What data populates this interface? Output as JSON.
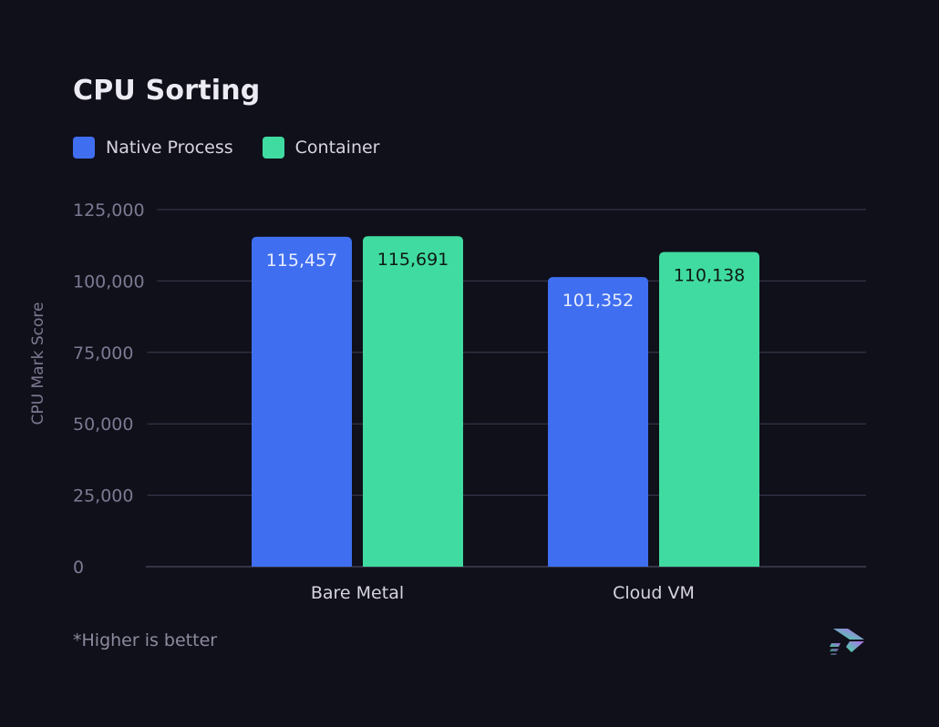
{
  "title": "CPU Sorting",
  "footnote": "*Higher is better",
  "colors": {
    "background": "#10101a",
    "native": "#3f6ff0",
    "container": "#40dba0",
    "grid": "#3d3c52",
    "tick_text": "#7d7992",
    "label_text": "#d7d4e0",
    "value_text_native": "#e9ecff",
    "value_text_container": "#0e1a16"
  },
  "legend": [
    {
      "label": "Native Process",
      "color": "#3f6ff0"
    },
    {
      "label": "Container",
      "color": "#40dba0"
    }
  ],
  "chart_data": {
    "type": "bar",
    "title": "CPU Sorting",
    "xlabel": "",
    "ylabel": "CPU Mark Score",
    "ylim": [
      0,
      125000
    ],
    "yticks": [
      0,
      25000,
      50000,
      75000,
      100000,
      125000
    ],
    "ytick_labels": [
      "0",
      "25,000",
      "50,000",
      "75,000",
      "100,000",
      "125,000"
    ],
    "categories": [
      "Bare Metal",
      "Cloud VM"
    ],
    "series": [
      {
        "name": "Native Process",
        "values": [
          115457,
          101352
        ],
        "labels": [
          "115,457",
          "101,352"
        ]
      },
      {
        "name": "Container",
        "values": [
          115691,
          110138
        ],
        "labels": [
          "115,691",
          "110,138"
        ]
      }
    ],
    "grid": true,
    "legend_position": "top-left"
  }
}
